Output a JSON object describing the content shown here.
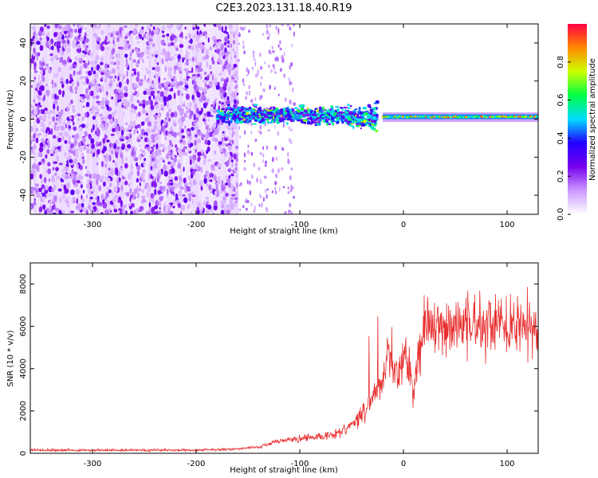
{
  "figure_title": "C2E3.2023.131.18.40.R19",
  "chart_data": [
    {
      "type": "heatmap",
      "title": "",
      "xlabel": "Height of straight line (km)",
      "ylabel": "Frequency (Hz)",
      "xlim": [
        -360,
        130
      ],
      "ylim": [
        -50,
        50
      ],
      "xticks": [
        -300,
        -200,
        -100,
        0,
        100
      ],
      "yticks": [
        -40,
        -20,
        0,
        20,
        40
      ],
      "colorbar": {
        "label": "Normalized spectral amplitude",
        "range": [
          0.0,
          1.0
        ],
        "ticks": [
          0.0,
          0.2,
          0.4,
          0.6,
          0.8
        ],
        "colormap": [
          "#ffffff",
          "#cc99ff",
          "#7700ee",
          "#2200ff",
          "#00ddff",
          "#00ff44",
          "#ccff00",
          "#ff8800",
          "#ff0044"
        ]
      },
      "regions": [
        {
          "x": [
            -360,
            -165
          ],
          "freq": [
            -50,
            50
          ],
          "amplitude": "0.1-0.3 noise speckle"
        },
        {
          "x": [
            -165,
            -110
          ],
          "freq": [
            -50,
            50
          ],
          "amplitude": "sparse faint speckle"
        },
        {
          "x": [
            -180,
            -25
          ],
          "freq": [
            -12,
            15
          ],
          "amplitude": "0.3-0.7 scattered signal"
        },
        {
          "x": [
            -20,
            130
          ],
          "freq": [
            -1,
            3
          ],
          "amplitude": "0.5-1.0 narrow band"
        }
      ],
      "grid": false
    },
    {
      "type": "line",
      "title": "",
      "xlabel": "Height of straight line (km)",
      "ylabel": "SNR (10 * v/v)",
      "xlim": [
        -360,
        130
      ],
      "ylim": [
        0,
        9000
      ],
      "xticks": [
        -300,
        -200,
        -100,
        0,
        100
      ],
      "yticks": [
        0,
        2000,
        4000,
        6000,
        8000
      ],
      "series": [
        {
          "color": "#e83030",
          "x": [
            -360,
            -300,
            -250,
            -200,
            -160,
            -140,
            -120,
            -100,
            -80,
            -60,
            -40,
            -30,
            -20,
            -15,
            -10,
            -5,
            0,
            5,
            10,
            15,
            20,
            30,
            40,
            60,
            80,
            100,
            120,
            130
          ],
          "y": [
            150,
            150,
            150,
            150,
            200,
            300,
            600,
            700,
            800,
            1000,
            1800,
            2500,
            3500,
            4500,
            4000,
            3800,
            4600,
            4300,
            2800,
            5200,
            5800,
            6000,
            6100,
            6200,
            6150,
            6050,
            6000,
            5900
          ]
        }
      ],
      "grid": false
    }
  ]
}
